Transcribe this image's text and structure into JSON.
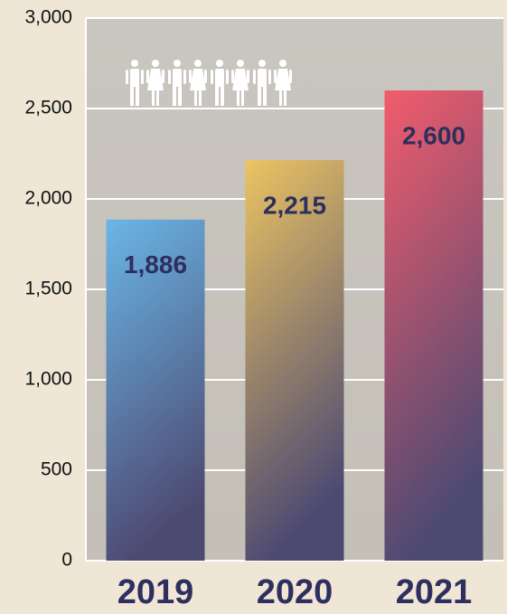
{
  "chart_data": {
    "type": "bar",
    "categories": [
      "2019",
      "2020",
      "2021"
    ],
    "values": [
      1886,
      2215,
      2600
    ],
    "value_labels": [
      "1,886",
      "2,215",
      "2,600"
    ],
    "colors": [
      "#6ab6e6",
      "#ecc462",
      "#f25c6c"
    ],
    "ylim": [
      0,
      3000
    ],
    "yticks": [
      0,
      500,
      {
        "value": 1000,
        "label": "1,000"
      },
      {
        "value": 1500,
        "label": "1,500"
      },
      {
        "value": 2000,
        "label": "2,000"
      },
      {
        "value": 2500,
        "label": "2,500"
      },
      {
        "value": 3000,
        "label": "3,000"
      }
    ],
    "grid": true
  }
}
